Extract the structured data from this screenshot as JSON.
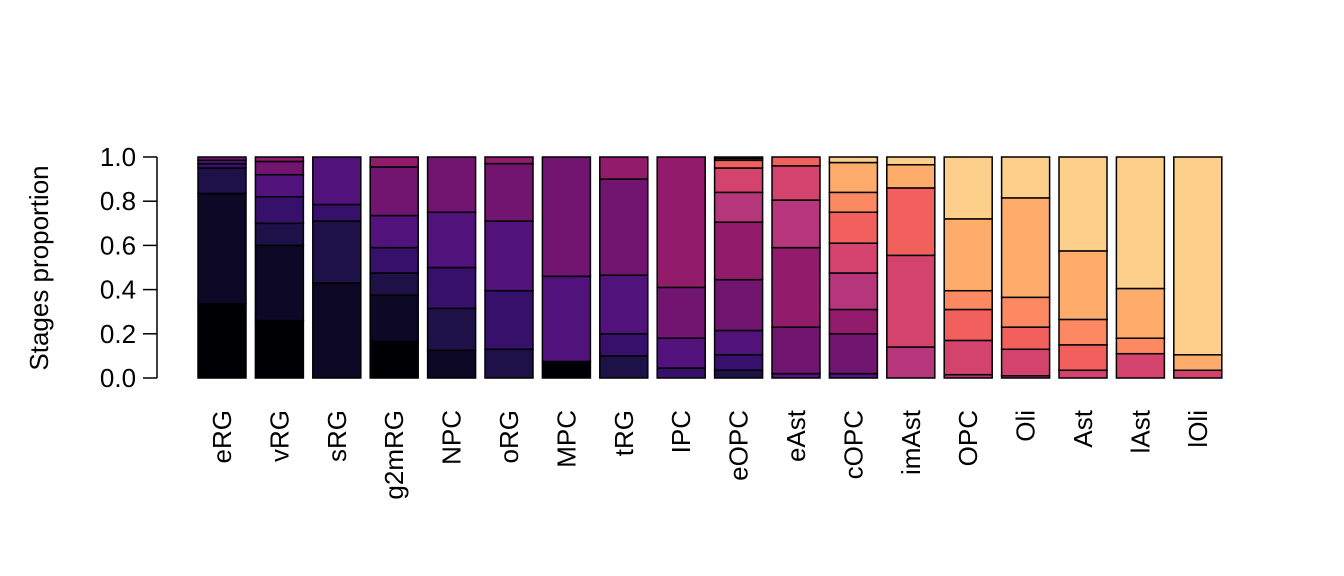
{
  "chart_data": {
    "type": "bar",
    "stacked": true,
    "title": "",
    "xlabel": "",
    "ylabel": "Stages proportion",
    "ylim": [
      0,
      1
    ],
    "yticks": [
      "0.0",
      "0.2",
      "0.4",
      "0.6",
      "0.8",
      "1.0"
    ],
    "grid": false,
    "legend": null,
    "stage_colors": [
      "#000004",
      "#0c0826",
      "#1d1147",
      "#36106b",
      "#51127c",
      "#711571",
      "#921c6b",
      "#b5367a",
      "#d3436e",
      "#f1605d",
      "#fc8961",
      "#feac6c",
      "#fcd08a"
    ],
    "categories": [
      "eRG",
      "vRG",
      "sRG",
      "g2mRG",
      "NPC",
      "oRG",
      "MPC",
      "tRG",
      "IPC",
      "eOPC",
      "eAst",
      "cOPC",
      "imAst",
      "OPC",
      "Oli",
      "Ast",
      "lAst",
      "lOli"
    ],
    "bars": [
      {
        "label": "eRG",
        "segments": [
          [
            0,
            0.335
          ],
          [
            1,
            0.835
          ],
          [
            2,
            0.95
          ],
          [
            3,
            0.97
          ],
          [
            4,
            0.985
          ],
          [
            5,
            1.0
          ]
        ]
      },
      {
        "label": "vRG",
        "segments": [
          [
            0,
            0.26
          ],
          [
            1,
            0.6
          ],
          [
            2,
            0.7
          ],
          [
            3,
            0.82
          ],
          [
            4,
            0.92
          ],
          [
            5,
            0.98
          ],
          [
            6,
            1.0
          ]
        ]
      },
      {
        "label": "sRG",
        "segments": [
          [
            1,
            0.43
          ],
          [
            2,
            0.71
          ],
          [
            3,
            0.785
          ],
          [
            4,
            1.0
          ]
        ]
      },
      {
        "label": "g2mRG",
        "segments": [
          [
            0,
            0.165
          ],
          [
            1,
            0.375
          ],
          [
            2,
            0.475
          ],
          [
            3,
            0.59
          ],
          [
            4,
            0.735
          ],
          [
            5,
            0.955
          ],
          [
            6,
            1.0
          ]
        ]
      },
      {
        "label": "NPC",
        "segments": [
          [
            1,
            0.125
          ],
          [
            2,
            0.315
          ],
          [
            3,
            0.5
          ],
          [
            4,
            0.75
          ],
          [
            5,
            1.0
          ]
        ]
      },
      {
        "label": "oRG",
        "segments": [
          [
            2,
            0.13
          ],
          [
            3,
            0.395
          ],
          [
            4,
            0.71
          ],
          [
            5,
            0.97
          ],
          [
            6,
            1.0
          ]
        ]
      },
      {
        "label": "MPC",
        "segments": [
          [
            0,
            0.075
          ],
          [
            4,
            0.46
          ],
          [
            5,
            1.0
          ]
        ]
      },
      {
        "label": "tRG",
        "segments": [
          [
            2,
            0.1
          ],
          [
            3,
            0.2
          ],
          [
            4,
            0.465
          ],
          [
            5,
            0.9
          ],
          [
            6,
            1.0
          ]
        ]
      },
      {
        "label": "IPC",
        "segments": [
          [
            3,
            0.045
          ],
          [
            4,
            0.18
          ],
          [
            5,
            0.41
          ],
          [
            6,
            1.0
          ]
        ]
      },
      {
        "label": "eOPC",
        "segments": [
          [
            2,
            0.035
          ],
          [
            3,
            0.105
          ],
          [
            4,
            0.215
          ],
          [
            5,
            0.445
          ],
          [
            6,
            0.705
          ],
          [
            7,
            0.84
          ],
          [
            8,
            0.95
          ],
          [
            9,
            0.985
          ],
          [
            10,
            0.993
          ],
          [
            11,
            1.0
          ]
        ]
      },
      {
        "label": "eAst",
        "segments": [
          [
            4,
            0.02
          ],
          [
            5,
            0.23
          ],
          [
            6,
            0.59
          ],
          [
            7,
            0.805
          ],
          [
            8,
            0.96
          ],
          [
            9,
            1.0
          ]
        ]
      },
      {
        "label": "cOPC",
        "segments": [
          [
            4,
            0.02
          ],
          [
            5,
            0.2
          ],
          [
            6,
            0.31
          ],
          [
            7,
            0.475
          ],
          [
            8,
            0.61
          ],
          [
            9,
            0.75
          ],
          [
            10,
            0.84
          ],
          [
            11,
            0.975
          ],
          [
            12,
            1.0
          ]
        ]
      },
      {
        "label": "imAst",
        "segments": [
          [
            7,
            0.14
          ],
          [
            8,
            0.555
          ],
          [
            9,
            0.86
          ],
          [
            11,
            0.965
          ],
          [
            12,
            1.0
          ]
        ]
      },
      {
        "label": "OPC",
        "segments": [
          [
            7,
            0.015
          ],
          [
            8,
            0.17
          ],
          [
            9,
            0.31
          ],
          [
            10,
            0.395
          ],
          [
            11,
            0.72
          ],
          [
            12,
            1.0
          ]
        ]
      },
      {
        "label": "Oli",
        "segments": [
          [
            7,
            0.01
          ],
          [
            8,
            0.13
          ],
          [
            9,
            0.23
          ],
          [
            10,
            0.365
          ],
          [
            11,
            0.815
          ],
          [
            12,
            1.0
          ]
        ]
      },
      {
        "label": "Ast",
        "segments": [
          [
            8,
            0.035
          ],
          [
            9,
            0.15
          ],
          [
            10,
            0.265
          ],
          [
            11,
            0.575
          ],
          [
            12,
            1.0
          ]
        ]
      },
      {
        "label": "lAst",
        "segments": [
          [
            8,
            0.11
          ],
          [
            10,
            0.18
          ],
          [
            11,
            0.405
          ],
          [
            12,
            1.0
          ]
        ]
      },
      {
        "label": "lOli",
        "segments": [
          [
            8,
            0.035
          ],
          [
            11,
            0.105
          ],
          [
            12,
            1.0
          ]
        ]
      }
    ],
    "note": "segments are [stage_color_index, cumulative_top_proportion] from bottom to top"
  }
}
